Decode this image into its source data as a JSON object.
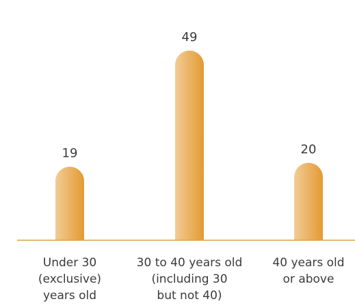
{
  "chart_data": {
    "type": "bar",
    "title": "",
    "xlabel": "",
    "ylabel": "",
    "ylim": [
      0,
      55
    ],
    "grid": false,
    "legend": "none",
    "categories": [
      [
        "Under 30",
        "(exclusive)",
        "years old"
      ],
      [
        "30 to 40 years old",
        "(including 30",
        "but not 40)"
      ],
      [
        "40 years old",
        "or above"
      ]
    ],
    "values": [
      19,
      49,
      20
    ],
    "colors": {
      "bar_light": "#f2cc96",
      "bar_dark": "#e39a32",
      "axis": "#d9a24c",
      "text": "#3a3a3a"
    }
  }
}
